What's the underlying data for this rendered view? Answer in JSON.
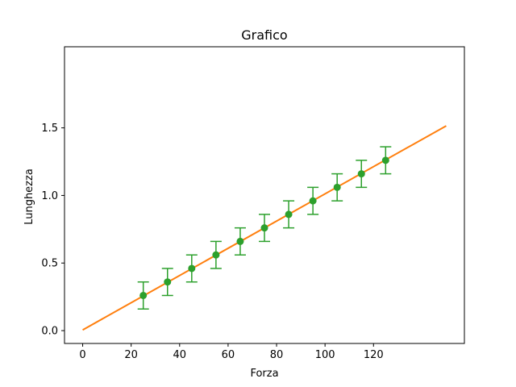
{
  "chart_data": {
    "type": "scatter",
    "title": "Grafico",
    "xlabel": "Forza",
    "ylabel": "Lunghezza",
    "xlim": [
      -7.5,
      157.5
    ],
    "ylim": [
      -0.095,
      2.1
    ],
    "xticks": [
      0,
      20,
      40,
      60,
      80,
      100,
      120
    ],
    "xtick_labels": [
      "0",
      "20",
      "40",
      "60",
      "80",
      "100",
      "120"
    ],
    "yticks": [
      0.0,
      0.5,
      1.0,
      1.5
    ],
    "ytick_labels": [
      "0.0",
      "0.5",
      "1.0",
      "1.5"
    ],
    "grid": false,
    "series": [
      {
        "kind": "errorbar",
        "color": "#2ca02c",
        "x": [
          25,
          35,
          45,
          55,
          65,
          75,
          85,
          95,
          105,
          115,
          125
        ],
        "y": [
          0.26,
          0.36,
          0.46,
          0.56,
          0.66,
          0.76,
          0.86,
          0.96,
          1.06,
          1.16,
          1.26
        ],
        "yerr": [
          0.1,
          0.1,
          0.1,
          0.1,
          0.1,
          0.1,
          0.1,
          0.1,
          0.1,
          0.1,
          0.1
        ]
      },
      {
        "kind": "fit-line",
        "color": "#ff7f0e",
        "x": [
          0,
          150
        ],
        "y": [
          0.005,
          1.515
        ]
      }
    ]
  }
}
